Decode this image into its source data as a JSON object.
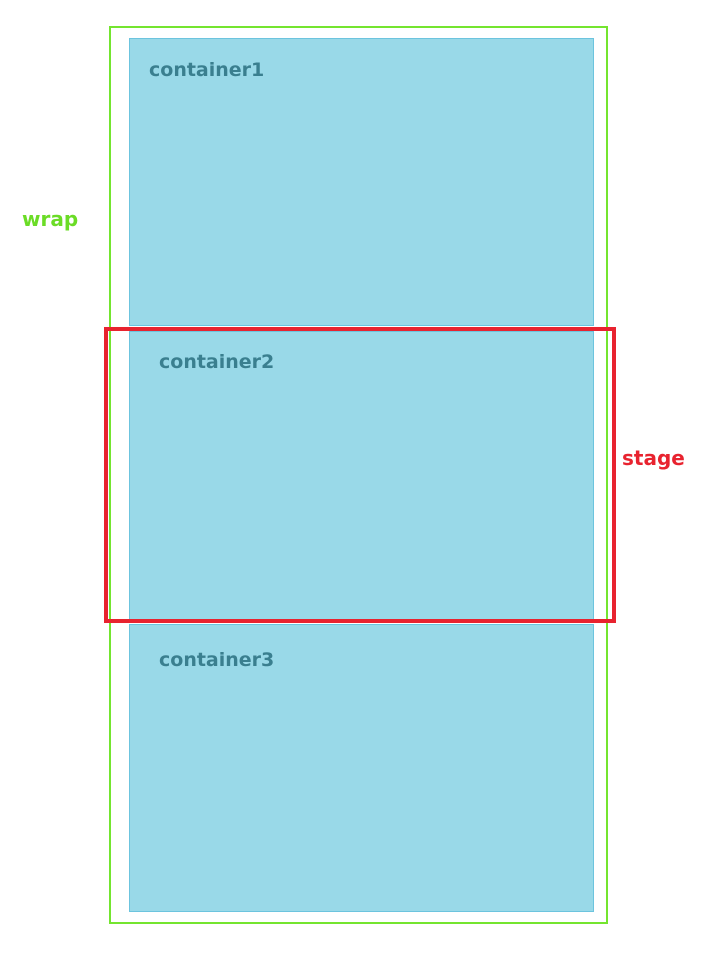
{
  "wrap": {
    "label": "wrap",
    "color": "#74e52f"
  },
  "stage": {
    "label": "stage",
    "color": "#e8232f"
  },
  "containers": [
    {
      "label": "container1",
      "color": "#99d9e8"
    },
    {
      "label": "container2",
      "color": "#99d9e8"
    },
    {
      "label": "container3",
      "color": "#99d9e8"
    }
  ]
}
